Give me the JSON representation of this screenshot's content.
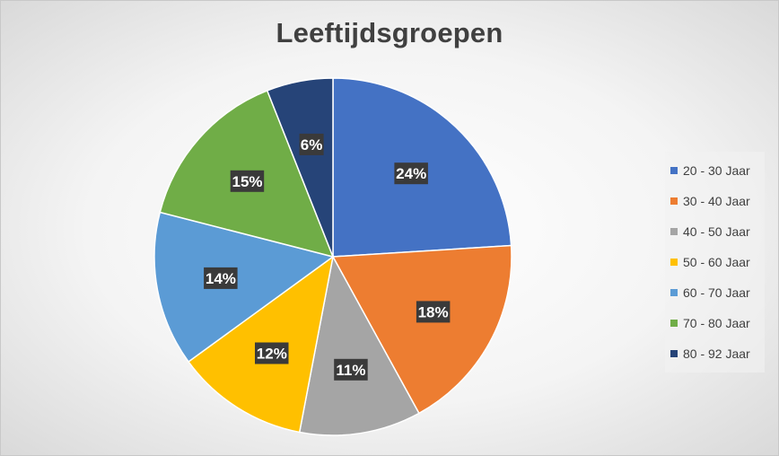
{
  "chart_data": {
    "type": "pie",
    "title": "Leeftijdsgroepen",
    "categories": [
      "20 - 30 Jaar",
      "30 - 40 Jaar",
      "40 - 50 Jaar",
      "50 - 60 Jaar",
      "60 - 70 Jaar",
      "70 - 80 Jaar",
      "80 - 92 Jaar"
    ],
    "values": [
      24,
      18,
      11,
      12,
      14,
      15,
      6
    ],
    "data_labels": [
      "24%",
      "18%",
      "11%",
      "12%",
      "14%",
      "15%",
      "6%"
    ],
    "colors": [
      "#4472C4",
      "#ED7D31",
      "#A5A5A5",
      "#FFC000",
      "#5B9BD5",
      "#70AD47",
      "#264478"
    ],
    "legend_position": "right",
    "grid": false
  }
}
